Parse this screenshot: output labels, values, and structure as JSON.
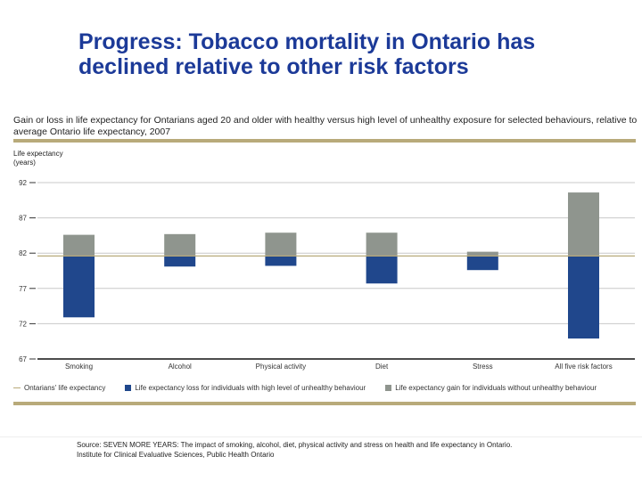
{
  "slide_title": "Progress: Tobacco mortality in Ontario has declined relative to other risk factors",
  "chart_data": {
    "type": "bar",
    "title": "Gain or loss in life expectancy for Ontarians aged 20 and older with healthy versus high level of unhealthy exposure for selected behaviours, relative to average Ontario life expectancy, 2007",
    "ylabel": "Life expectancy (years)",
    "xlabel": "",
    "ylim": [
      67,
      92
    ],
    "yticks": [
      "92",
      "87",
      "82",
      "77",
      "72",
      "67"
    ],
    "grid": true,
    "legend_position": "bottom",
    "baseline": {
      "name": "Ontarians' life expectancy",
      "value": 81.6
    },
    "categories": [
      "Smoking",
      "Alcohol",
      "Physical activity",
      "Diet",
      "Stress",
      "All five risk factors"
    ],
    "series": [
      {
        "name": "Life expectancy loss for individuals with high level of unhealthy behaviour",
        "color": "#20478c",
        "values": [
          72.9,
          80.1,
          80.2,
          77.7,
          79.6,
          69.9
        ]
      },
      {
        "name": "Life expectancy gain for individuals without unhealthy behaviour",
        "color": "#8f958e",
        "values": [
          84.6,
          84.7,
          84.9,
          84.9,
          82.2,
          90.6
        ]
      }
    ]
  },
  "source": {
    "line1": "Source:  SEVEN MORE YEARS: The impact of smoking, alcohol, diet, physical activity and stress on health and life expectancy in Ontario.",
    "line2": "Institute for Clinical Evaluative Sciences, Public Health Ontario"
  }
}
